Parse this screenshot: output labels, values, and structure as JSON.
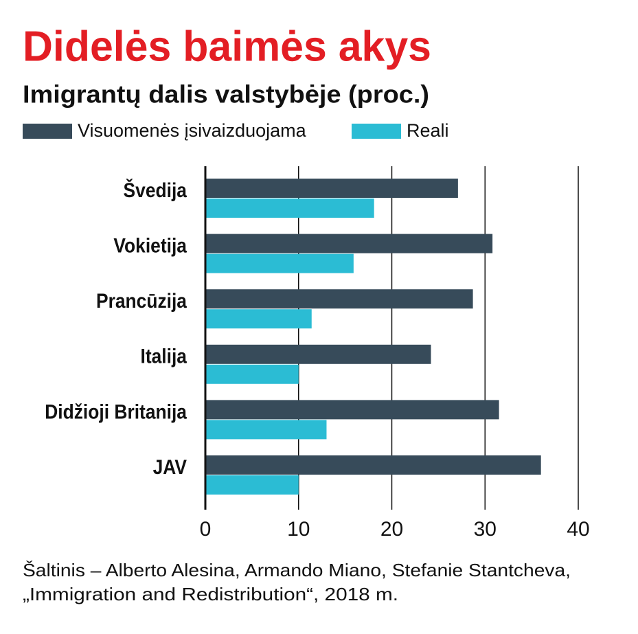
{
  "chart_data": {
    "type": "bar",
    "orientation": "horizontal",
    "title": "Didelės baimės akys",
    "subtitle": "Imigrantų dalis valstybėje (proc.)",
    "categories": [
      "Švedija",
      "Vokietija",
      "Prancūzija",
      "Italija",
      "Didžioji Britanija",
      "JAV"
    ],
    "series": [
      {
        "name": "Visuomenės įsivaizduojama",
        "color": "#374b5a",
        "values": [
          27.1,
          30.8,
          28.7,
          24.2,
          31.5,
          36.0
        ]
      },
      {
        "name": "Reali",
        "color": "#2bbcd4",
        "values": [
          18.1,
          15.9,
          11.4,
          10.0,
          13.0,
          10.0
        ]
      }
    ],
    "xlim": [
      0,
      40
    ],
    "xticks": [
      0,
      10,
      20,
      30,
      40
    ],
    "grid": true,
    "source": [
      "Šaltinis – Alberto Alesina, Armando Miano, Stefanie Stantcheva,",
      "„Immigration and Redistribution“, 2018 m."
    ]
  }
}
